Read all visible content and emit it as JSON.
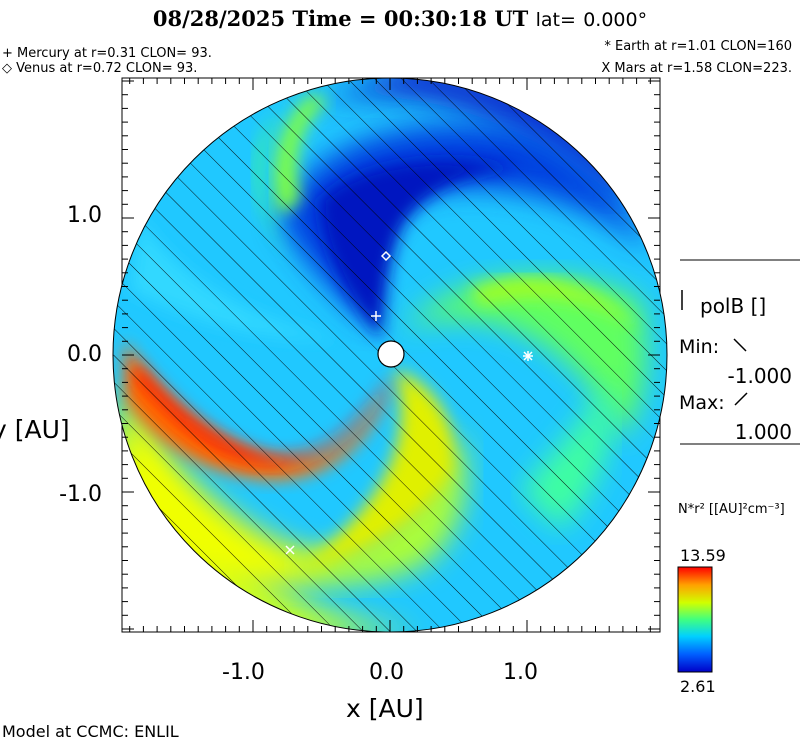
{
  "header": {
    "date_time": "08/28/2025 Time = 00:30:18 UT",
    "lat_label": "lat=",
    "lat_value": "0.000°"
  },
  "planets": {
    "mercury": "+ Mercury at r=0.31 CLON= 93.",
    "venus": "◇ Venus at r=0.72 CLON= 93.",
    "earth": "* Earth at  r=1.01 CLON=160",
    "mars": "X Mars at r=1.58 CLON=223."
  },
  "axes": {
    "xlabel": "x [AU]",
    "ylabel": "y [AU]",
    "xticks": [
      "-1.0",
      "0.0",
      "1.0"
    ],
    "yticks": [
      "1.0",
      "0.0",
      "-1.0"
    ]
  },
  "polarity_panel": {
    "title": "polB []",
    "min_label": "Min:",
    "min_value": "-1.000",
    "max_label": "Max:",
    "max_value": "1.000"
  },
  "colorbar": {
    "label": "N*r² [[AU]²cm⁻³]",
    "max": "13.59",
    "min": "2.61",
    "colors": [
      "#0000c8",
      "#0060ff",
      "#00d0ff",
      "#40ff80",
      "#d0ff00",
      "#ffa000",
      "#ff0000"
    ]
  },
  "footer": {
    "credit": "Model at CCMC: ENLIL"
  }
}
